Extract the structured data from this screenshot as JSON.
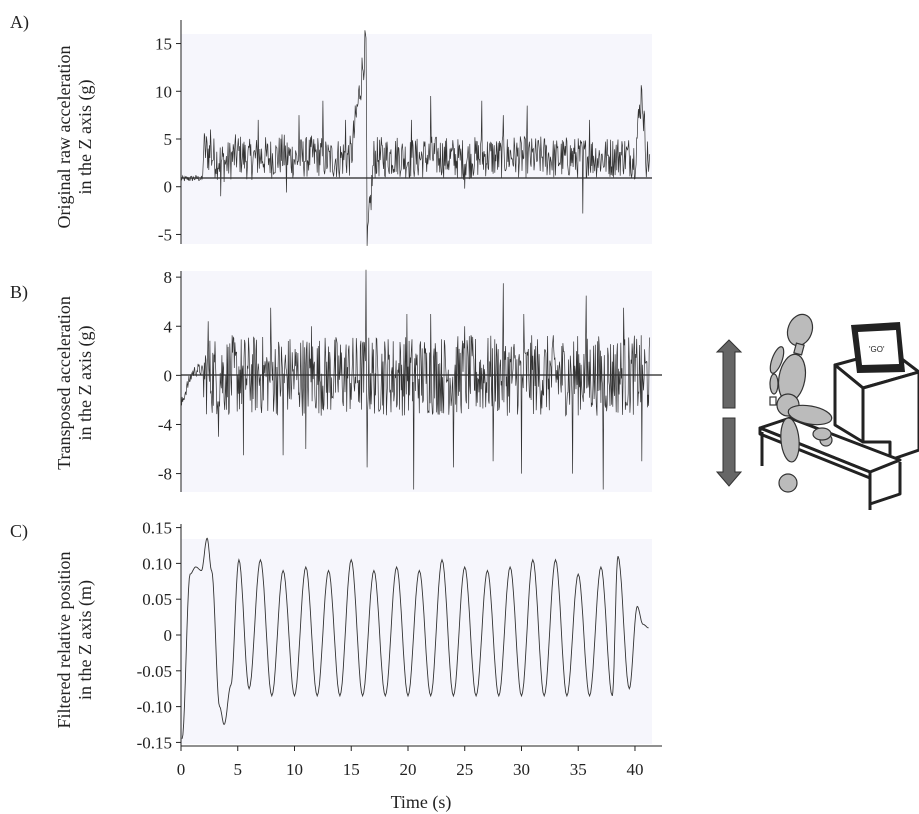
{
  "figure": {
    "xlabel": "Time (s)",
    "x_ticks": [
      "0",
      "5",
      "10",
      "15",
      "20",
      "25",
      "30",
      "35",
      "40"
    ],
    "illustration": {
      "sign_text": "'GO'",
      "arrow_color": "#666666",
      "figure_color": "#bbbbbb"
    }
  },
  "chart_data": [
    {
      "type": "line",
      "panel": "A)",
      "ylabel_line1": "Original raw acceleration",
      "ylabel_line2": "in the Z axis (g)",
      "xlim": [
        0,
        41.5
      ],
      "ylim": [
        -6,
        16
      ],
      "y_ticks": [
        "15",
        "10",
        "5",
        "0",
        "-5"
      ],
      "series": [
        {
          "points": [
            [
              0,
              0.8
            ],
            [
              1.5,
              0.9
            ],
            [
              1.9,
              0.8
            ],
            [
              2.0,
              4.0
            ],
            [
              3,
              3.0
            ],
            [
              4,
              2.5
            ],
            [
              5,
              3.5
            ],
            [
              6,
              2.8
            ],
            [
              7,
              3.2
            ],
            [
              8,
              3.0
            ],
            [
              9,
              3.4
            ],
            [
              10,
              2.9
            ],
            [
              11,
              3.1
            ],
            [
              12,
              3.3
            ],
            [
              13,
              2.8
            ],
            [
              14,
              3.0
            ],
            [
              15,
              3.2
            ],
            [
              16.3,
              15.2
            ],
            [
              16.4,
              -6.2
            ],
            [
              17,
              3.0
            ],
            [
              18,
              3.1
            ],
            [
              19,
              3.3
            ],
            [
              20,
              2.9
            ],
            [
              21,
              3.0
            ],
            [
              22,
              3.2
            ],
            [
              23,
              3.1
            ],
            [
              24,
              3.0
            ],
            [
              25,
              2.9
            ],
            [
              26,
              3.1
            ],
            [
              27,
              3.2
            ],
            [
              28,
              3.0
            ],
            [
              29,
              3.3
            ],
            [
              30,
              3.1
            ],
            [
              31,
              3.0
            ],
            [
              32,
              3.2
            ],
            [
              33,
              2.9
            ],
            [
              34,
              3.1
            ],
            [
              35,
              3.0
            ],
            [
              36,
              3.2
            ],
            [
              37,
              3.0
            ],
            [
              38,
              3.1
            ],
            [
              39,
              3.3
            ],
            [
              40,
              3.0
            ],
            [
              40.6,
              10.2
            ],
            [
              41,
              3.1
            ],
            [
              41.3,
              2.8
            ]
          ],
          "amplitude": 2.2,
          "peaks": [
            [
              2.6,
              6
            ],
            [
              6.8,
              7
            ],
            [
              10.4,
              7.5
            ],
            [
              12.5,
              9
            ],
            [
              14.5,
              7
            ],
            [
              20.3,
              7
            ],
            [
              22,
              9.5
            ],
            [
              26.5,
              9
            ],
            [
              28.4,
              7.5
            ],
            [
              30.5,
              8.5
            ],
            [
              36,
              7
            ],
            [
              40.6,
              10.2
            ]
          ],
          "dips": [
            [
              3.5,
              -1
            ],
            [
              9.3,
              -0.6
            ],
            [
              16.4,
              -6.2
            ],
            [
              25,
              -0.2
            ],
            [
              35.4,
              -2.8
            ]
          ]
        }
      ]
    },
    {
      "type": "line",
      "panel": "B)",
      "ylabel_line1": "Transposed acceleration",
      "ylabel_line2": "in the Z axis (g)",
      "xlim": [
        0,
        41.5
      ],
      "ylim": [
        -9.5,
        8.5
      ],
      "y_ticks": [
        "8",
        "4",
        "0",
        "-4",
        "-8"
      ],
      "series": [
        {
          "points": [
            [
              0,
              -2.5
            ],
            [
              0.5,
              -1.0
            ],
            [
              1.0,
              0.2
            ],
            [
              1.5,
              0.5
            ],
            [
              1.9,
              0.3
            ],
            [
              2,
              0
            ],
            [
              41.3,
              0
            ]
          ],
          "amplitude": 3.3,
          "peaks": [
            [
              2.4,
              4.4
            ],
            [
              7.9,
              5.5
            ],
            [
              11.5,
              4
            ],
            [
              16.3,
              8.6
            ],
            [
              19.9,
              5
            ],
            [
              22,
              5
            ],
            [
              25,
              4
            ],
            [
              28.4,
              7.5
            ],
            [
              30.2,
              5
            ],
            [
              35.7,
              6.5
            ],
            [
              39,
              5.5
            ]
          ],
          "dips": [
            [
              3.3,
              -5
            ],
            [
              5.5,
              -6.5
            ],
            [
              9,
              -6.5
            ],
            [
              11,
              -6
            ],
            [
              16.4,
              -7.5
            ],
            [
              20.5,
              -9.3
            ],
            [
              24,
              -7.5
            ],
            [
              27.5,
              -7
            ],
            [
              30,
              -8
            ],
            [
              34.5,
              -8
            ],
            [
              37.2,
              -9.3
            ],
            [
              40.6,
              -7
            ]
          ]
        }
      ]
    },
    {
      "type": "line",
      "panel": "C)",
      "ylabel_line1": "Filtered relative position",
      "ylabel_line2": "in the Z axis (m)",
      "xlim": [
        0,
        41.5
      ],
      "ylim": [
        -0.155,
        0.155
      ],
      "y_ticks": [
        "0.15",
        "0.10",
        "0.05",
        "0",
        "-0.05",
        "-0.10",
        "-0.15"
      ],
      "series": [
        {
          "points": [
            [
              0.1,
              -0.145
            ],
            [
              0.8,
              0.085
            ],
            [
              1.3,
              0.095
            ],
            [
              1.8,
              0.09
            ],
            [
              2.3,
              0.135
            ],
            [
              2.7,
              0.09
            ],
            [
              3.4,
              -0.1
            ],
            [
              3.8,
              -0.125
            ],
            [
              4.4,
              -0.07
            ],
            [
              5.1,
              0.105
            ],
            [
              6,
              -0.075
            ],
            [
              7,
              0.105
            ],
            [
              8,
              -0.085
            ],
            [
              9,
              0.09
            ],
            [
              10,
              -0.085
            ],
            [
              11,
              0.095
            ],
            [
              12,
              -0.085
            ],
            [
              13,
              0.09
            ],
            [
              14,
              -0.085
            ],
            [
              15,
              0.105
            ],
            [
              16,
              -0.085
            ],
            [
              17,
              0.09
            ],
            [
              18,
              -0.085
            ],
            [
              19,
              0.095
            ],
            [
              20,
              -0.085
            ],
            [
              21,
              0.09
            ],
            [
              22,
              -0.085
            ],
            [
              23,
              0.105
            ],
            [
              24,
              -0.085
            ],
            [
              25,
              0.095
            ],
            [
              26,
              -0.085
            ],
            [
              27,
              0.09
            ],
            [
              28,
              -0.085
            ],
            [
              29,
              0.095
            ],
            [
              30,
              -0.085
            ],
            [
              31,
              0.105
            ],
            [
              32,
              -0.085
            ],
            [
              33,
              0.105
            ],
            [
              34,
              -0.085
            ],
            [
              35,
              0.085
            ],
            [
              36,
              -0.085
            ],
            [
              37,
              0.095
            ],
            [
              38,
              -0.085
            ],
            [
              38.5,
              0.11
            ],
            [
              39.5,
              -0.075
            ],
            [
              40.2,
              0.04
            ],
            [
              40.7,
              0.015
            ],
            [
              41.2,
              0.01
            ]
          ]
        }
      ]
    }
  ]
}
